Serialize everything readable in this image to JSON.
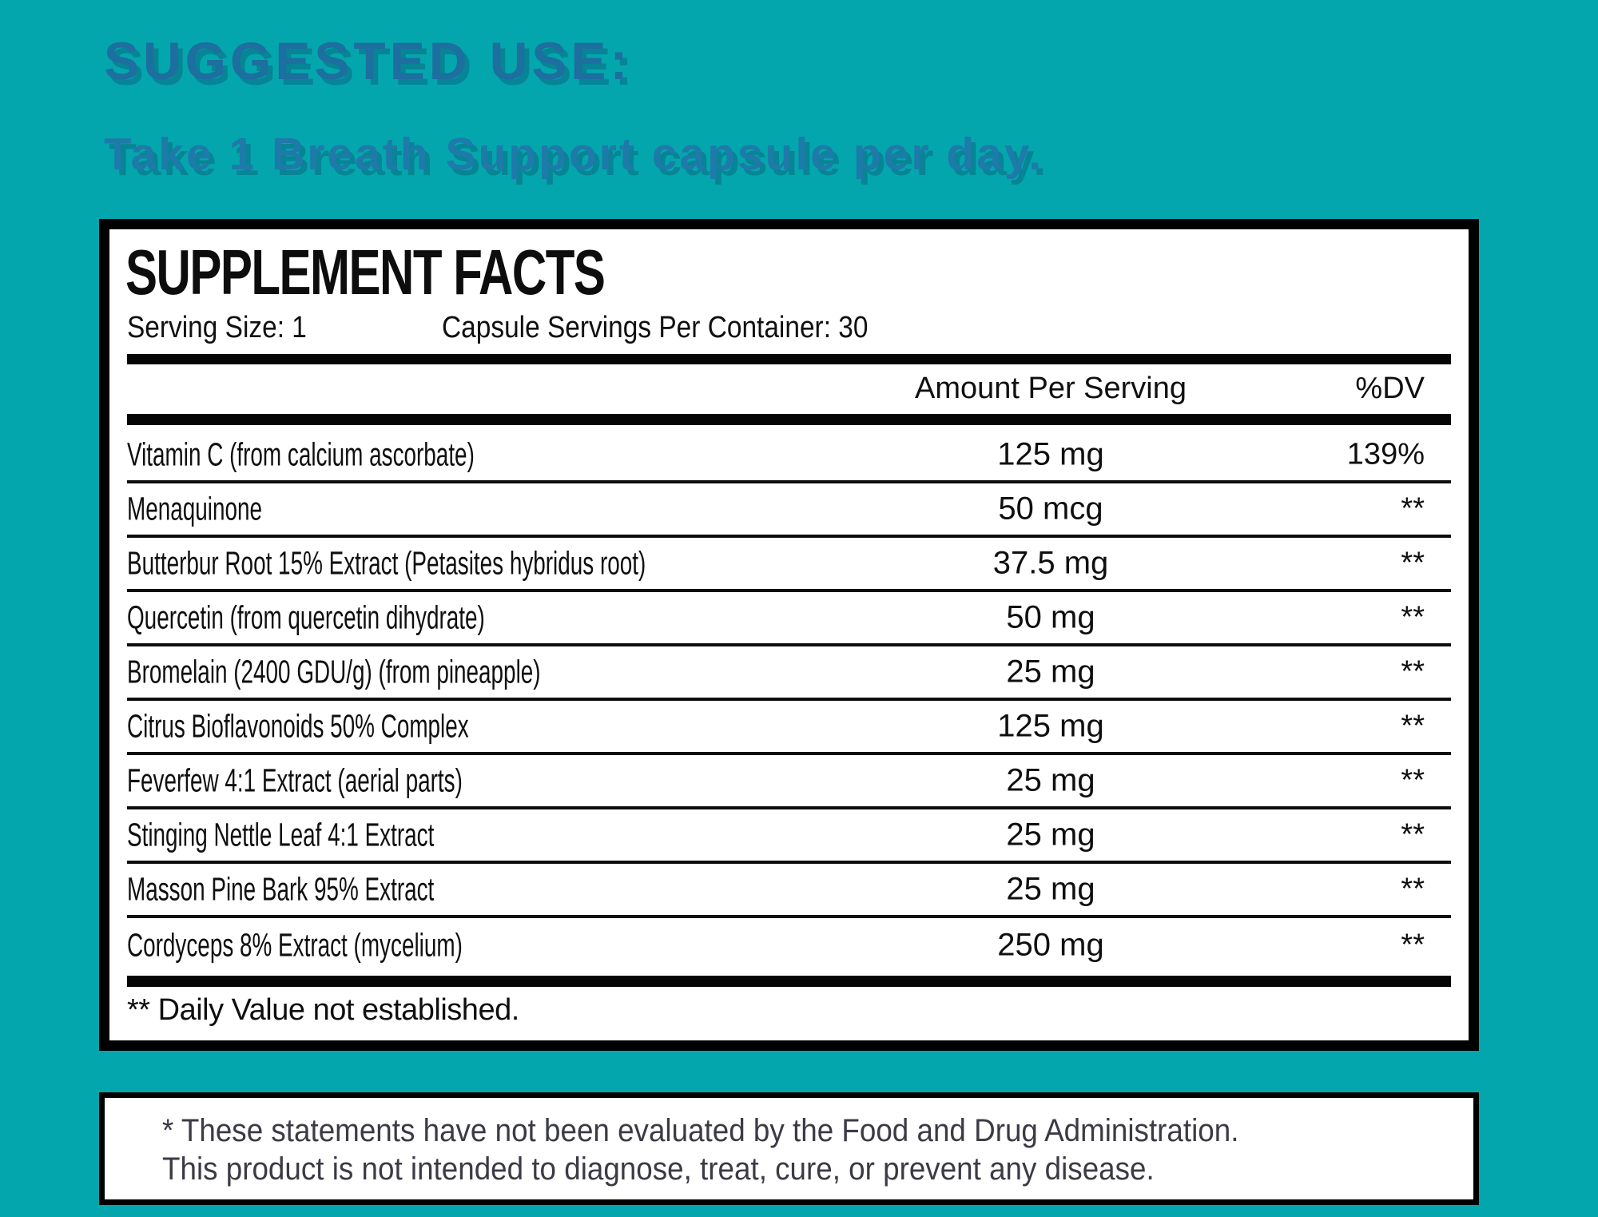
{
  "colors": {
    "background_teal": "#04A6AD",
    "heading_blue": "#1C6F9E",
    "instruction_blue": "#1E7AA8",
    "panel_border": "#000000",
    "panel_background": "#FFFFFF",
    "disclaimer_text": "#3B3B46",
    "label_text": "#0F0F0F"
  },
  "suggested_use": {
    "heading": "SUGGESTED USE:",
    "instruction": "Take 1 Breath Support capsule per day."
  },
  "supplement_facts": {
    "title": "SUPPLEMENT FACTS",
    "serving_size": "Serving Size: 1",
    "servings_per_container": "Capsule Servings Per Container: 30",
    "columns": {
      "amount": "Amount Per Serving",
      "dv": "%DV"
    },
    "rows": [
      {
        "name": "Vitamin C (from calcium ascorbate)",
        "amount": "125 mg",
        "dv": "139%"
      },
      {
        "name": "Menaquinone",
        "amount": "50 mcg",
        "dv": "**"
      },
      {
        "name": "Butterbur Root 15% Extract (Petasites hybridus root)",
        "amount": "37.5 mg",
        "dv": "**"
      },
      {
        "name": "Quercetin (from quercetin dihydrate)",
        "amount": "50 mg",
        "dv": "**"
      },
      {
        "name": "Bromelain (2400 GDU/g) (from pineapple)",
        "amount": "25 mg",
        "dv": "**"
      },
      {
        "name": "Citrus Bioflavonoids 50% Complex",
        "amount": "125 mg",
        "dv": "**"
      },
      {
        "name": "Feverfew 4:1 Extract (aerial parts)",
        "amount": "25 mg",
        "dv": "**"
      },
      {
        "name": "Stinging Nettle Leaf 4:1 Extract",
        "amount": "25 mg",
        "dv": "**"
      },
      {
        "name": "Masson Pine Bark 95% Extract",
        "amount": "25 mg",
        "dv": "**"
      },
      {
        "name": "Cordyceps 8% Extract (mycelium)",
        "amount": "250 mg",
        "dv": "**"
      }
    ],
    "footnote": "** Daily Value not established."
  },
  "disclaimer": {
    "line1": "* These statements have not been evaluated by the Food and Drug Administration.",
    "line2": "This product is not intended to diagnose, treat, cure, or prevent any disease."
  }
}
